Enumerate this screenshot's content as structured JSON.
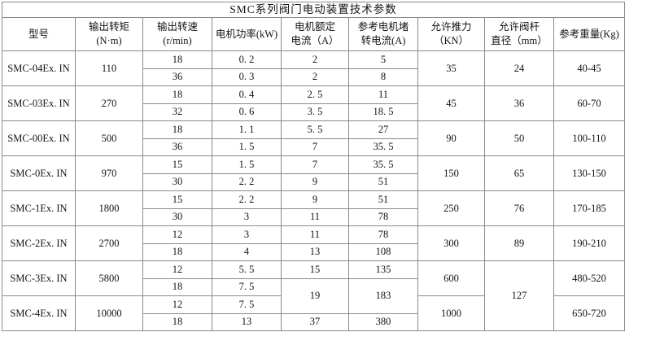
{
  "title": "SMC系列阀门电动装置技术参数",
  "table": {
    "headers": [
      {
        "key": "model",
        "lines": [
          "型号"
        ]
      },
      {
        "key": "torque",
        "lines": [
          "输出转矩",
          "(N·m)"
        ]
      },
      {
        "key": "speed",
        "lines": [
          "输出转速",
          "(r/min)"
        ]
      },
      {
        "key": "power",
        "lines": [
          "电机功率(kW)"
        ]
      },
      {
        "key": "current",
        "lines": [
          "电机额定",
          "电流（A）"
        ]
      },
      {
        "key": "locked-current",
        "lines": [
          "参考电机堵",
          "转电流(A)"
        ]
      },
      {
        "key": "thrust",
        "lines": [
          "允许推力",
          "（KN）"
        ]
      },
      {
        "key": "stem-diameter",
        "lines": [
          "允许阀杆",
          "直径（mm）"
        ]
      },
      {
        "key": "weight",
        "lines": [
          "参考重量(Kg)"
        ]
      }
    ],
    "rows": [
      [
        {
          "c": "model",
          "t": "SMC-04Ex. IN",
          "rs": 2
        },
        {
          "c": "torque",
          "t": "110",
          "rs": 2
        },
        {
          "c": "speed",
          "t": "18"
        },
        {
          "c": "power",
          "t": "0. 2"
        },
        {
          "c": "current",
          "t": "2"
        },
        {
          "c": "locked-current",
          "t": "5"
        },
        {
          "c": "thrust",
          "t": "35",
          "rs": 2
        },
        {
          "c": "stem-diameter",
          "t": "24",
          "rs": 2
        },
        {
          "c": "weight",
          "t": "40-45",
          "rs": 2
        }
      ],
      [
        {
          "c": "speed",
          "t": "36"
        },
        {
          "c": "power",
          "t": "0. 3"
        },
        {
          "c": "current",
          "t": "2"
        },
        {
          "c": "locked-current",
          "t": "8"
        }
      ],
      [
        {
          "c": "model",
          "t": "SMC-03Ex. IN",
          "rs": 2
        },
        {
          "c": "torque",
          "t": "270",
          "rs": 2
        },
        {
          "c": "speed",
          "t": "18"
        },
        {
          "c": "power",
          "t": "0. 4"
        },
        {
          "c": "current",
          "t": "2. 5"
        },
        {
          "c": "locked-current",
          "t": "11"
        },
        {
          "c": "thrust",
          "t": "45",
          "rs": 2
        },
        {
          "c": "stem-diameter",
          "t": "36",
          "rs": 2
        },
        {
          "c": "weight",
          "t": "60-70",
          "rs": 2
        }
      ],
      [
        {
          "c": "speed",
          "t": "32"
        },
        {
          "c": "power",
          "t": "0. 6"
        },
        {
          "c": "current",
          "t": "3. 5"
        },
        {
          "c": "locked-current",
          "t": "18. 5"
        }
      ],
      [
        {
          "c": "model",
          "t": "SMC-00Ex. IN",
          "rs": 2
        },
        {
          "c": "torque",
          "t": "500",
          "rs": 2
        },
        {
          "c": "speed",
          "t": "18"
        },
        {
          "c": "power",
          "t": "1. 1"
        },
        {
          "c": "current",
          "t": "5. 5"
        },
        {
          "c": "locked-current",
          "t": "27"
        },
        {
          "c": "thrust",
          "t": "90",
          "rs": 2
        },
        {
          "c": "stem-diameter",
          "t": "50",
          "rs": 2
        },
        {
          "c": "weight",
          "t": "100-110",
          "rs": 2
        }
      ],
      [
        {
          "c": "speed",
          "t": "36"
        },
        {
          "c": "power",
          "t": "1. 5"
        },
        {
          "c": "current",
          "t": "7"
        },
        {
          "c": "locked-current",
          "t": "35. 5"
        }
      ],
      [
        {
          "c": "model",
          "t": "SMC-0Ex. IN",
          "rs": 2
        },
        {
          "c": "torque",
          "t": "970",
          "rs": 2
        },
        {
          "c": "speed",
          "t": "15"
        },
        {
          "c": "power",
          "t": "1. 5"
        },
        {
          "c": "current",
          "t": "7"
        },
        {
          "c": "locked-current",
          "t": "35. 5"
        },
        {
          "c": "thrust",
          "t": "150",
          "rs": 2
        },
        {
          "c": "stem-diameter",
          "t": "65",
          "rs": 2
        },
        {
          "c": "weight",
          "t": "130-150",
          "rs": 2
        }
      ],
      [
        {
          "c": "speed",
          "t": "30"
        },
        {
          "c": "power",
          "t": "2. 2"
        },
        {
          "c": "current",
          "t": "9"
        },
        {
          "c": "locked-current",
          "t": "51"
        }
      ],
      [
        {
          "c": "model",
          "t": "SMC-1Ex. IN",
          "rs": 2
        },
        {
          "c": "torque",
          "t": "1800",
          "rs": 2
        },
        {
          "c": "speed",
          "t": "15"
        },
        {
          "c": "power",
          "t": "2. 2"
        },
        {
          "c": "current",
          "t": "9"
        },
        {
          "c": "locked-current",
          "t": "51"
        },
        {
          "c": "thrust",
          "t": "250",
          "rs": 2
        },
        {
          "c": "stem-diameter",
          "t": "76",
          "rs": 2
        },
        {
          "c": "weight",
          "t": "170-185",
          "rs": 2
        }
      ],
      [
        {
          "c": "speed",
          "t": "30"
        },
        {
          "c": "power",
          "t": "3"
        },
        {
          "c": "current",
          "t": "11"
        },
        {
          "c": "locked-current",
          "t": "78"
        }
      ],
      [
        {
          "c": "model",
          "t": "SMC-2Ex. IN",
          "rs": 2
        },
        {
          "c": "torque",
          "t": "2700",
          "rs": 2
        },
        {
          "c": "speed",
          "t": "12"
        },
        {
          "c": "power",
          "t": "3"
        },
        {
          "c": "current",
          "t": "11"
        },
        {
          "c": "locked-current",
          "t": "78"
        },
        {
          "c": "thrust",
          "t": "300",
          "rs": 2
        },
        {
          "c": "stem-diameter",
          "t": "89",
          "rs": 2
        },
        {
          "c": "weight",
          "t": "190-210",
          "rs": 2
        }
      ],
      [
        {
          "c": "speed",
          "t": "18"
        },
        {
          "c": "power",
          "t": "4"
        },
        {
          "c": "current",
          "t": "13"
        },
        {
          "c": "locked-current",
          "t": "108"
        }
      ],
      [
        {
          "c": "model",
          "t": "SMC-3Ex. IN",
          "rs": 2
        },
        {
          "c": "torque",
          "t": "5800",
          "rs": 2
        },
        {
          "c": "speed",
          "t": "12"
        },
        {
          "c": "power",
          "t": "5. 5"
        },
        {
          "c": "current",
          "t": "15"
        },
        {
          "c": "locked-current",
          "t": "135"
        },
        {
          "c": "thrust",
          "t": "600",
          "rs": 2
        },
        {
          "c": "stem-diameter",
          "t": "127",
          "rs": 4
        },
        {
          "c": "weight",
          "t": "480-520",
          "rs": 2
        }
      ],
      [
        {
          "c": "speed",
          "t": "18"
        },
        {
          "c": "power",
          "t": "7. 5"
        },
        {
          "c": "current",
          "t": "19",
          "rs": 2
        },
        {
          "c": "locked-current",
          "t": "183",
          "rs": 2
        }
      ],
      [
        {
          "c": "model",
          "t": "SMC-4Ex. IN",
          "rs": 2
        },
        {
          "c": "torque",
          "t": "10000",
          "rs": 2
        },
        {
          "c": "speed",
          "t": "12"
        },
        {
          "c": "power",
          "t": "7. 5"
        },
        {
          "c": "thrust",
          "t": "1000",
          "rs": 2
        },
        {
          "c": "weight",
          "t": "650-720",
          "rs": 2
        }
      ],
      [
        {
          "c": "speed",
          "t": "18"
        },
        {
          "c": "power",
          "t": "13"
        },
        {
          "c": "current",
          "t": "37"
        },
        {
          "c": "locked-current",
          "t": "380"
        }
      ]
    ]
  }
}
